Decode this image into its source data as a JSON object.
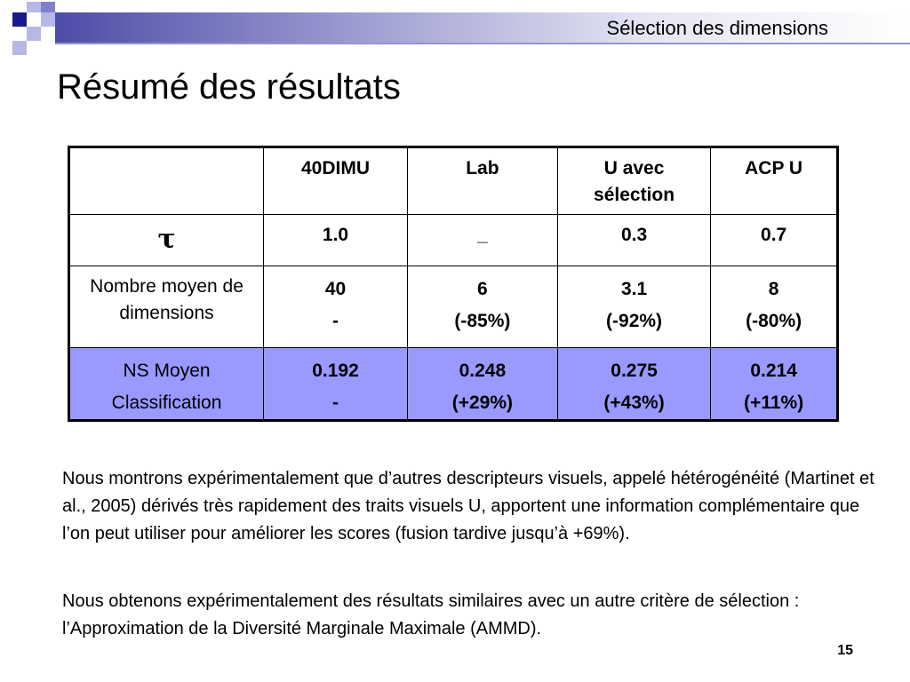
{
  "header": {
    "section_title": "Sélection des dimensions"
  },
  "slide": {
    "title": "Résumé des résultats",
    "page_number": "15"
  },
  "table": {
    "headers": [
      "",
      "40DIMU",
      "Lab",
      "U avec sélection",
      "ACP U"
    ],
    "rows": [
      {
        "label": [
          "τ"
        ],
        "cells": [
          [
            "1.0"
          ],
          [
            "_"
          ],
          [
            "0.3"
          ],
          [
            "0.7"
          ]
        ]
      },
      {
        "label": [
          "Nombre moyen de dimensions"
        ],
        "cells": [
          [
            "40",
            "-"
          ],
          [
            "6",
            "(-85%)"
          ],
          [
            "3.1",
            "(-92%)"
          ],
          [
            "8",
            "(-80%)"
          ]
        ]
      },
      {
        "label": [
          "NS Moyen",
          "Classification"
        ],
        "cells": [
          [
            "0.192",
            "-"
          ],
          [
            "0.248",
            "(+29%)"
          ],
          [
            "0.275",
            "(+43%)"
          ],
          [
            "0.214",
            "(+11%)"
          ]
        ]
      }
    ],
    "highlight_row_color": "#9999ff"
  },
  "paragraphs": [
    "Nous montrons expérimentalement que d’autres descripteurs visuels, appelé hétérogénéité (Martinet et al., 2005) dérivés très rapidement des traits visuels U, apportent une information complémentaire que l’on peut utiliser pour améliorer les scores (fusion tardive jusqu’à +69%).",
    "Nous obtenons expérimentalement des résultats similaires avec un autre critère de sélection : l’Approximation de la Diversité Marginale Maximale (AMMD)."
  ]
}
